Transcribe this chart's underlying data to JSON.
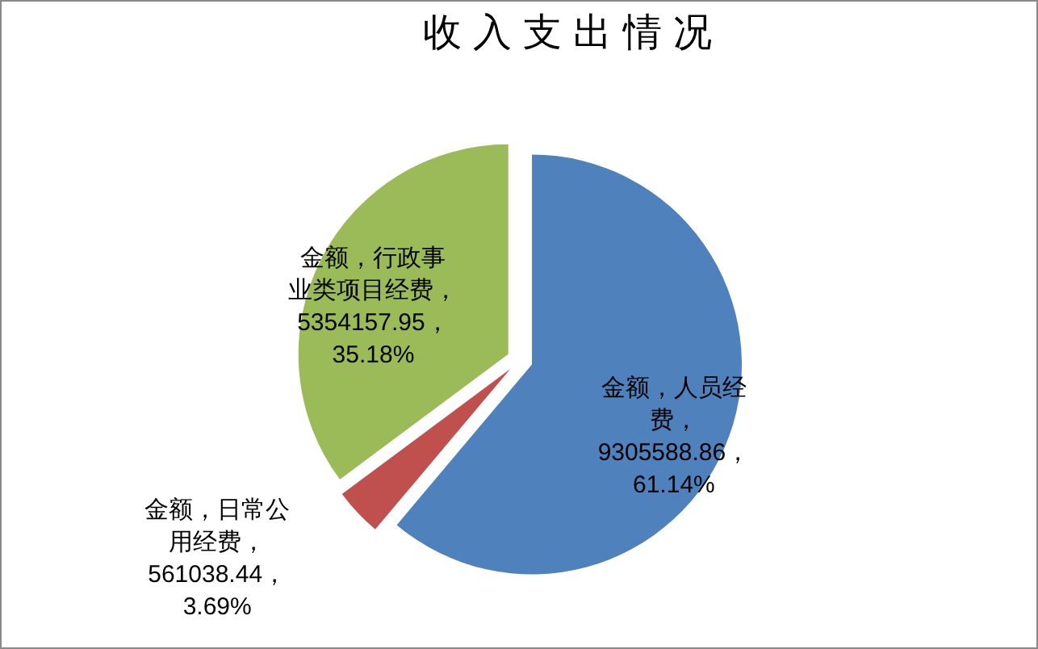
{
  "chart_data": {
    "type": "pie",
    "title": "收入支出情况",
    "categories": [
      null,
      null,
      null
    ],
    "values": [
      9305588.86,
      561038.44,
      5354157.95
    ],
    "value_labels": [
      "金额，人员经费，9305588.86，61.14%",
      "金额，日常公用经费，561038.44，3.69%",
      "金额，行政事业类项目经费，5354157.95，35.18%"
    ],
    "colors": [
      "#4f81bd",
      "#c0504d",
      "#9bbb59"
    ]
  }
}
